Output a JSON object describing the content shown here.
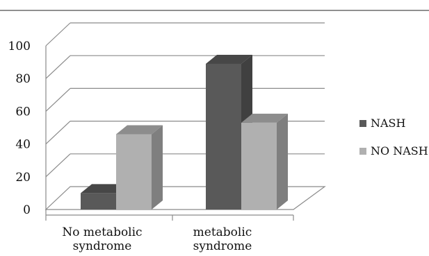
{
  "chart_data": {
    "type": "bar",
    "style": "3d-clustered-column",
    "categories": [
      [
        "No metabolic",
        "syndrome"
      ],
      [
        "metabolic",
        "syndrome"
      ]
    ],
    "series": [
      {
        "name": "NASH",
        "values": [
          10,
          89
        ],
        "color": "#595959"
      },
      {
        "name": "NO NASH",
        "values": [
          46,
          53
        ],
        "color": "#b0b0b0"
      }
    ],
    "y_ticks": [
      "0",
      "20",
      "40",
      "60",
      "80",
      "100"
    ],
    "ylim": [
      0,
      100
    ],
    "grid": true,
    "legend_position": "right"
  }
}
